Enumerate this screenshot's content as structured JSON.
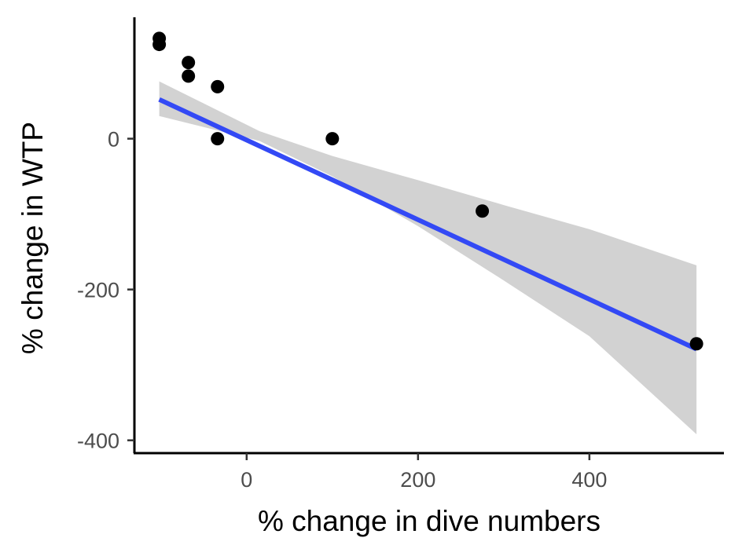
{
  "chart_data": {
    "type": "scatter",
    "title": "",
    "xlabel": "% change in dive numbers",
    "ylabel": "% change in WTP",
    "xlim": [
      -131,
      557
    ],
    "ylim": [
      -417,
      161
    ],
    "xticks": [
      0,
      200,
      400
    ],
    "yticks": [
      -400,
      -200,
      0
    ],
    "xtick_labels": [
      "0",
      "200",
      "400"
    ],
    "ytick_labels": [
      "-400",
      "-200",
      "0"
    ],
    "points": [
      {
        "x": -102,
        "y": 133
      },
      {
        "x": -102,
        "y": 125
      },
      {
        "x": -68,
        "y": 101
      },
      {
        "x": -68,
        "y": 83
      },
      {
        "x": -34,
        "y": 69
      },
      {
        "x": -34,
        "y": 0
      },
      {
        "x": 100,
        "y": 0
      },
      {
        "x": 275,
        "y": -96
      },
      {
        "x": 525,
        "y": -272
      }
    ],
    "fit_line": {
      "x": [
        -102,
        525
      ],
      "y": [
        52,
        -279
      ]
    },
    "confidence_band": {
      "x": [
        -102,
        15,
        100,
        200,
        300,
        400,
        525
      ],
      "lower": [
        30,
        -3,
        -50,
        -116,
        -188,
        -262,
        -392
      ],
      "upper": [
        76,
        10,
        -23,
        -55,
        -88,
        -120,
        -168
      ]
    },
    "grid": false,
    "legend": "none",
    "colors": {
      "points": "#000000",
      "fit_line": "#3349f5",
      "band": "#d2d2d2",
      "axis": "#000000",
      "tick_label": "#4d4d4d"
    }
  }
}
